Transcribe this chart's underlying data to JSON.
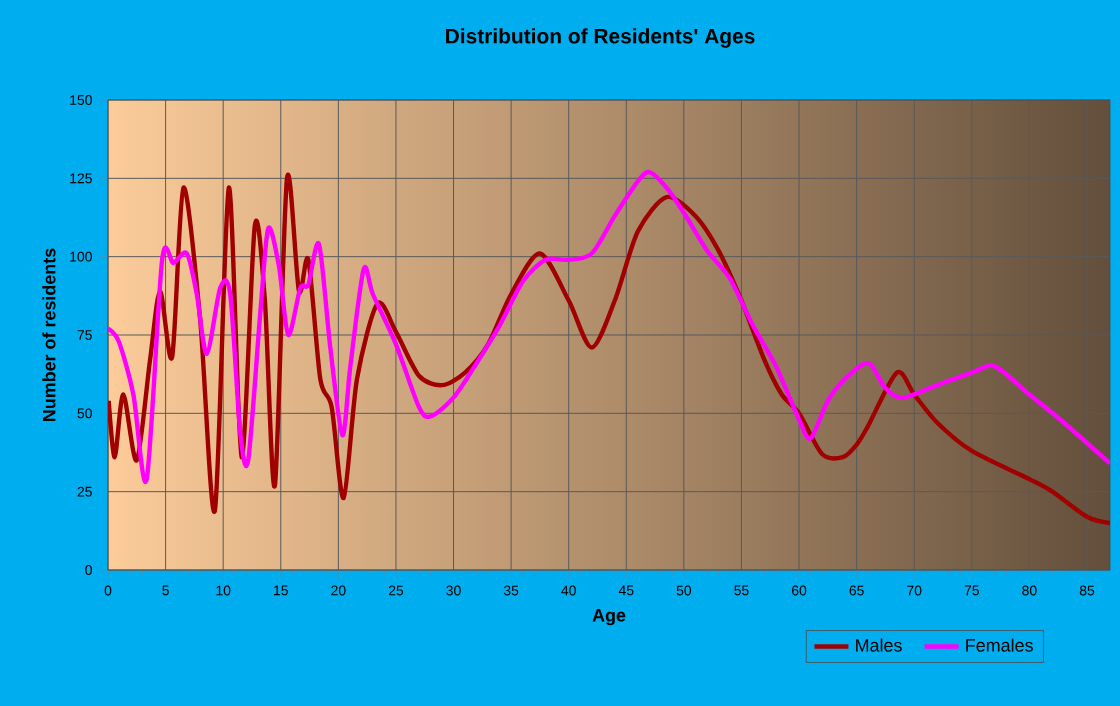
{
  "chart_data": {
    "type": "line",
    "title": "Distribution of Residents' Ages",
    "xlabel": "Age",
    "ylabel": "Number of residents",
    "xlim": [
      0,
      87
    ],
    "ylim": [
      0,
      150
    ],
    "xticks": [
      0,
      5,
      10,
      15,
      20,
      25,
      30,
      35,
      40,
      45,
      50,
      55,
      60,
      65,
      70,
      75,
      80,
      85
    ],
    "yticks": [
      0,
      25,
      50,
      75,
      100,
      125,
      150
    ],
    "grid": true,
    "legend": "bottom right",
    "series": [
      {
        "name": "Males",
        "color": "#a00000",
        "x": [
          0.06,
          0.58,
          1.33,
          2.49,
          3.65,
          4.52,
          5.57,
          6.55,
          8.0,
          9.28,
          10.49,
          11.6,
          12.75,
          13.62,
          14.49,
          15.54,
          16.58,
          17.39,
          18.43,
          19.42,
          20.46,
          21.62,
          23.4,
          25,
          27,
          29,
          31,
          33,
          35,
          37.5,
          40,
          42,
          44,
          46,
          48.5,
          51,
          53,
          55,
          57,
          58.5,
          60,
          62,
          63.8,
          65,
          66,
          68.5,
          70,
          72,
          75,
          80,
          82,
          85,
          87
        ],
        "values": [
          54,
          36,
          56,
          35,
          67,
          89,
          68,
          122,
          80,
          19,
          122,
          36,
          110,
          86,
          27,
          125,
          89,
          99,
          61,
          52,
          23,
          61,
          85,
          76,
          62,
          59,
          63,
          72,
          88,
          101,
          86,
          71,
          86,
          108,
          119,
          113,
          102,
          86,
          67,
          56,
          50,
          37,
          36,
          40,
          46,
          63,
          56,
          47,
          38,
          29,
          25,
          17,
          15
        ]
      },
      {
        "name": "Females",
        "color": "#ff00ff",
        "x": [
          0,
          0.93,
          2.2,
          3.36,
          4.7,
          5.68,
          6.84,
          7.71,
          8.58,
          9.74,
          10.61,
          11.48,
          12.17,
          13.22,
          13.91,
          14.84,
          15.65,
          16.7,
          17.39,
          18.32,
          19.3,
          20.35,
          21.04,
          22.2,
          23,
          25,
          27,
          28,
          30,
          32,
          34,
          36,
          38,
          40,
          42,
          44,
          46,
          47,
          48.5,
          50,
          52,
          54,
          56,
          58,
          60,
          61,
          62.5,
          64,
          66,
          67.5,
          69,
          72,
          75,
          77,
          80,
          83,
          87
        ],
        "values": [
          77,
          73,
          56,
          29,
          99,
          98,
          101,
          88,
          69,
          90,
          88,
          44,
          35,
          82,
          109,
          97,
          75,
          90,
          91,
          104,
          71,
          43,
          65,
          96,
          88,
          72,
          52,
          49,
          55,
          66,
          78,
          92,
          99,
          99,
          101,
          113,
          124,
          127,
          122,
          114,
          102,
          93,
          78,
          65,
          48,
          42,
          54,
          61,
          66,
          58,
          55,
          59,
          63,
          65,
          56,
          47,
          34
        ]
      }
    ]
  }
}
